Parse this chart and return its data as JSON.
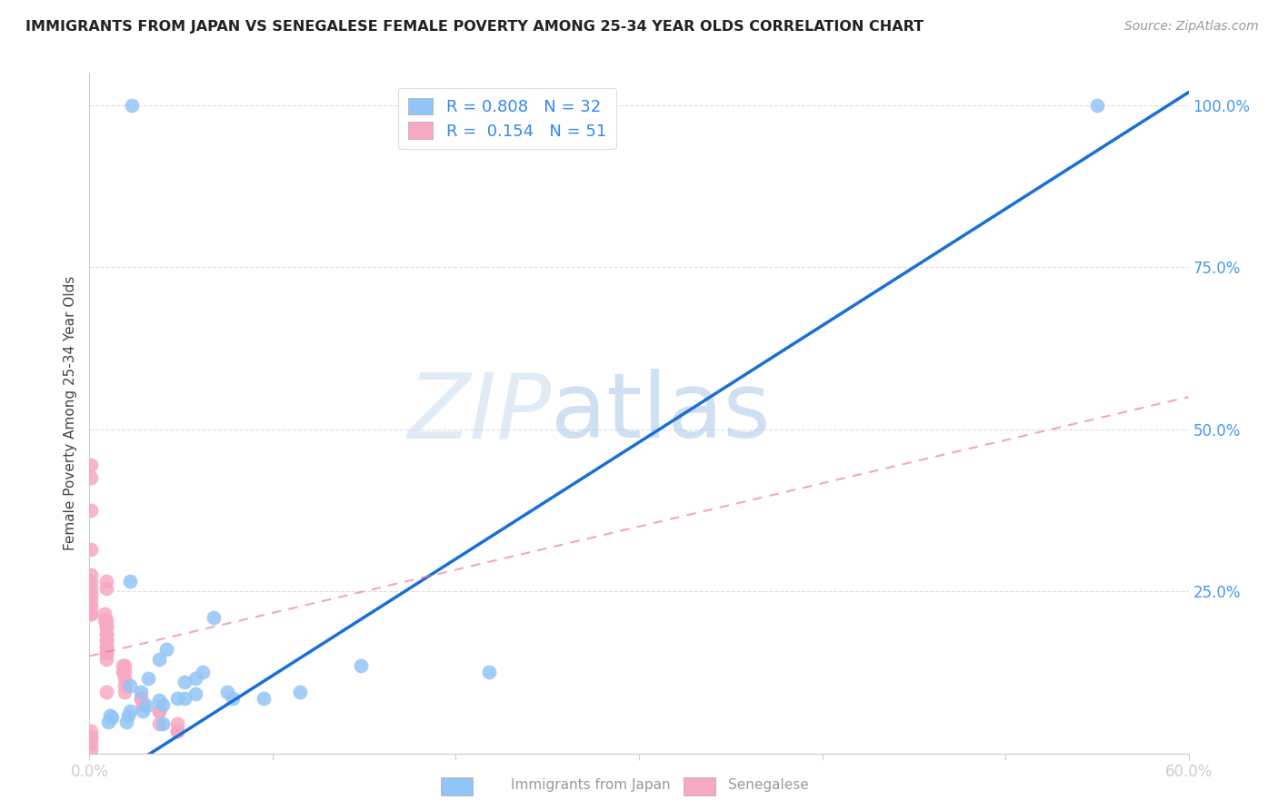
{
  "title": "IMMIGRANTS FROM JAPAN VS SENEGALESE FEMALE POVERTY AMONG 25-34 YEAR OLDS CORRELATION CHART",
  "source": "Source: ZipAtlas.com",
  "ylabel": "Female Poverty Among 25-34 Year Olds",
  "xlim": [
    0.0,
    0.6
  ],
  "ylim": [
    0.0,
    1.05
  ],
  "xticks": [
    0.0,
    0.1,
    0.2,
    0.3,
    0.4,
    0.5,
    0.6
  ],
  "xticklabels": [
    "0.0%",
    "",
    "",
    "",
    "",
    "",
    "60.0%"
  ],
  "yticks_right": [
    0.0,
    0.25,
    0.5,
    0.75,
    1.0
  ],
  "yticklabels_right": [
    "",
    "25.0%",
    "50.0%",
    "75.0%",
    "100.0%"
  ],
  "blue_R": 0.808,
  "blue_N": 32,
  "pink_R": 0.154,
  "pink_N": 51,
  "blue_color": "#92C5F7",
  "blue_line_color": "#1A6FD4",
  "pink_color": "#F7A8C4",
  "pink_line_color": "#E8799A",
  "watermark_zip": "ZIP",
  "watermark_atlas": "atlas",
  "background_color": "#FFFFFF",
  "grid_color": "#DDDDDD",
  "blue_line_x": [
    0.0,
    0.6
  ],
  "blue_line_y": [
    -0.06,
    1.02
  ],
  "pink_line_x": [
    0.0,
    0.6
  ],
  "pink_line_y": [
    0.15,
    0.55
  ],
  "blue_scatter_x": [
    0.023,
    0.55,
    0.022,
    0.042,
    0.038,
    0.028,
    0.058,
    0.075,
    0.095,
    0.048,
    0.038,
    0.04,
    0.031,
    0.029,
    0.022,
    0.021,
    0.012,
    0.011,
    0.01,
    0.02,
    0.068,
    0.058,
    0.052,
    0.032,
    0.022,
    0.115,
    0.078,
    0.052,
    0.062,
    0.04,
    0.148,
    0.218
  ],
  "blue_scatter_y": [
    1.0,
    1.0,
    0.265,
    0.16,
    0.145,
    0.095,
    0.092,
    0.095,
    0.085,
    0.085,
    0.082,
    0.075,
    0.073,
    0.065,
    0.065,
    0.058,
    0.055,
    0.058,
    0.048,
    0.048,
    0.21,
    0.115,
    0.11,
    0.115,
    0.105,
    0.095,
    0.085,
    0.085,
    0.125,
    0.045,
    0.135,
    0.125
  ],
  "pink_scatter_x": [
    0.001,
    0.001,
    0.001,
    0.001,
    0.001,
    0.001,
    0.001,
    0.001,
    0.001,
    0.001,
    0.001,
    0.001,
    0.008,
    0.008,
    0.009,
    0.009,
    0.009,
    0.009,
    0.009,
    0.009,
    0.009,
    0.009,
    0.009,
    0.009,
    0.009,
    0.009,
    0.018,
    0.018,
    0.019,
    0.019,
    0.019,
    0.019,
    0.028,
    0.028,
    0.029,
    0.029,
    0.038,
    0.038,
    0.038,
    0.048,
    0.048,
    0.048,
    0.001,
    0.001,
    0.001,
    0.001,
    0.001,
    0.009,
    0.009,
    0.009,
    0.019
  ],
  "pink_scatter_y": [
    0.445,
    0.425,
    0.375,
    0.315,
    0.275,
    0.265,
    0.255,
    0.245,
    0.235,
    0.225,
    0.215,
    0.215,
    0.215,
    0.205,
    0.205,
    0.195,
    0.195,
    0.185,
    0.185,
    0.175,
    0.175,
    0.165,
    0.165,
    0.155,
    0.155,
    0.145,
    0.135,
    0.125,
    0.125,
    0.115,
    0.105,
    0.095,
    0.085,
    0.085,
    0.075,
    0.075,
    0.065,
    0.065,
    0.045,
    0.045,
    0.035,
    0.035,
    0.035,
    0.025,
    0.025,
    0.015,
    0.005,
    0.265,
    0.255,
    0.095,
    0.135
  ]
}
